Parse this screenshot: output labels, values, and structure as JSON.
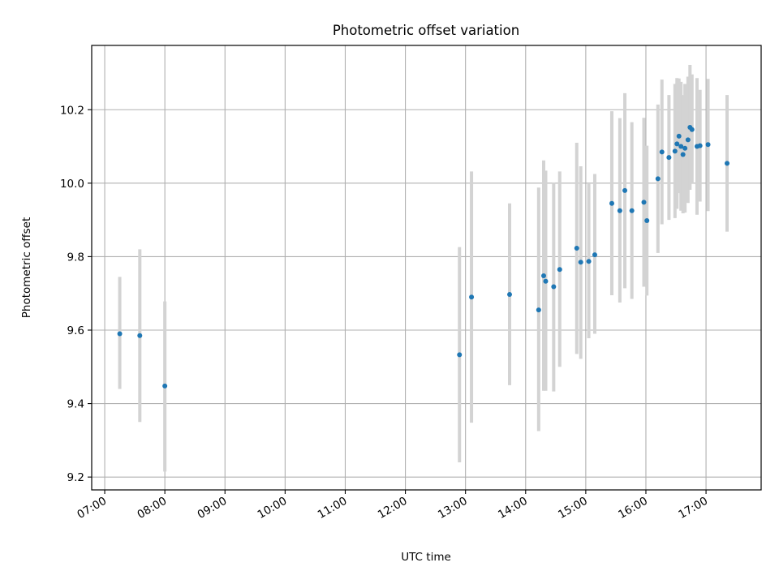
{
  "chart_data": {
    "type": "scatter",
    "title": "Photometric offset variation",
    "xlabel": "UTC time",
    "ylabel": "Photometric offset",
    "grid": true,
    "x_ticks": [
      "07:00",
      "08:00",
      "09:00",
      "10:00",
      "11:00",
      "12:00",
      "13:00",
      "14:00",
      "15:00",
      "16:00",
      "17:00"
    ],
    "y_ticks": [
      "9.2",
      "9.4",
      "9.6",
      "9.8",
      "10.0",
      "10.2"
    ],
    "xlim": [
      "06:47",
      "17:55"
    ],
    "ylim": [
      9.165,
      10.375
    ],
    "colors": {
      "point": "#1f77b4",
      "errorbar": "#d3d3d3",
      "grid": "#b0b0b0"
    },
    "series": [
      {
        "points": [
          {
            "x": "07:15",
            "y": 9.59,
            "ylo": 9.44,
            "yhi": 9.745
          },
          {
            "x": "07:35",
            "y": 9.585,
            "ylo": 9.35,
            "yhi": 9.82
          },
          {
            "x": "08:00",
            "y": 9.448,
            "ylo": 9.215,
            "yhi": 9.678
          },
          {
            "x": "12:54",
            "y": 9.533,
            "ylo": 9.24,
            "yhi": 9.826
          },
          {
            "x": "13:06",
            "y": 9.69,
            "ylo": 9.348,
            "yhi": 10.032
          },
          {
            "x": "13:44",
            "y": 9.697,
            "ylo": 9.45,
            "yhi": 9.945
          },
          {
            "x": "14:13",
            "y": 9.655,
            "ylo": 9.325,
            "yhi": 9.988
          },
          {
            "x": "14:18",
            "y": 9.748,
            "ylo": 9.435,
            "yhi": 10.062
          },
          {
            "x": "14:20",
            "y": 9.733,
            "ylo": 9.435,
            "yhi": 10.034
          },
          {
            "x": "14:28",
            "y": 9.718,
            "ylo": 9.433,
            "yhi": 10.002
          },
          {
            "x": "14:34",
            "y": 9.765,
            "ylo": 9.5,
            "yhi": 10.032
          },
          {
            "x": "14:51",
            "y": 9.823,
            "ylo": 9.535,
            "yhi": 10.11
          },
          {
            "x": "14:55",
            "y": 9.785,
            "ylo": 9.522,
            "yhi": 10.046
          },
          {
            "x": "15:03",
            "y": 9.787,
            "ylo": 9.578,
            "yhi": 9.998
          },
          {
            "x": "15:09",
            "y": 9.805,
            "ylo": 9.59,
            "yhi": 10.025
          },
          {
            "x": "15:26",
            "y": 9.945,
            "ylo": 9.695,
            "yhi": 10.196
          },
          {
            "x": "15:34",
            "y": 9.925,
            "ylo": 9.675,
            "yhi": 10.177
          },
          {
            "x": "15:39",
            "y": 9.98,
            "ylo": 9.714,
            "yhi": 10.245
          },
          {
            "x": "15:46",
            "y": 9.925,
            "ylo": 9.685,
            "yhi": 10.166
          },
          {
            "x": "15:58",
            "y": 9.948,
            "ylo": 9.718,
            "yhi": 10.178
          },
          {
            "x": "16:01",
            "y": 9.898,
            "ylo": 9.694,
            "yhi": 10.102
          },
          {
            "x": "16:12",
            "y": 10.012,
            "ylo": 9.81,
            "yhi": 10.214
          },
          {
            "x": "16:16",
            "y": 10.085,
            "ylo": 9.888,
            "yhi": 10.282
          },
          {
            "x": "16:23",
            "y": 10.07,
            "ylo": 9.9,
            "yhi": 10.24
          },
          {
            "x": "16:29",
            "y": 10.087,
            "ylo": 9.905,
            "yhi": 10.27
          },
          {
            "x": "16:31",
            "y": 10.107,
            "ylo": 9.93,
            "yhi": 10.286
          },
          {
            "x": "16:33",
            "y": 10.128,
            "ylo": 9.973,
            "yhi": 10.285
          },
          {
            "x": "16:35",
            "y": 10.1,
            "ylo": 9.925,
            "yhi": 10.276
          },
          {
            "x": "16:37",
            "y": 10.078,
            "ylo": 9.918,
            "yhi": 10.24
          },
          {
            "x": "16:39",
            "y": 10.095,
            "ylo": 9.92,
            "yhi": 10.27
          },
          {
            "x": "16:42",
            "y": 10.118,
            "ylo": 9.946,
            "yhi": 10.29
          },
          {
            "x": "16:44",
            "y": 10.152,
            "ylo": 9.982,
            "yhi": 10.322
          },
          {
            "x": "16:46",
            "y": 10.146,
            "ylo": 9.998,
            "yhi": 10.296
          },
          {
            "x": "16:51",
            "y": 10.1,
            "ylo": 9.914,
            "yhi": 10.286
          },
          {
            "x": "16:54",
            "y": 10.102,
            "ylo": 9.95,
            "yhi": 10.254
          },
          {
            "x": "17:02",
            "y": 10.105,
            "ylo": 9.924,
            "yhi": 10.284
          },
          {
            "x": "17:21",
            "y": 10.054,
            "ylo": 9.868,
            "yhi": 10.24
          }
        ]
      }
    ]
  }
}
